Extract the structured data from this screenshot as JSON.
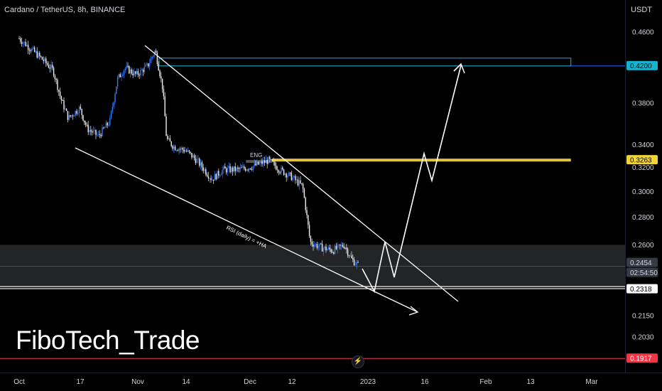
{
  "header": {
    "title": "Cardano / TetherUS, 8h, BINANCE",
    "currency": "USDT"
  },
  "watermark": "FiboTech_Trade",
  "colors": {
    "background": "#000000",
    "candle_up": "#3b78f5",
    "candle_down": "#f0f0f0",
    "resistance_zone": "#e2c53f",
    "target_zone": "#14b3d0",
    "support_zone": "#6e6f73",
    "red_line": "#f23645",
    "pattern_lines": "#ffffff"
  },
  "price_axis": {
    "ticks": [
      "0.4600",
      "0.3800",
      "0.3400",
      "0.3200",
      "0.3000",
      "0.2800",
      "0.2600",
      "0.2150",
      "0.2030"
    ],
    "flags": [
      {
        "label": "0.4200",
        "bg": "#14b3d0",
        "fg": "#000000"
      },
      {
        "label": "0.3263",
        "bg": "#f0d43a",
        "fg": "#000000"
      },
      {
        "label": "0.2454",
        "bg": "#363a45",
        "fg": "#d1d4dc"
      },
      {
        "label": "02:54:50",
        "bg": "#363a45",
        "fg": "#d1d4dc"
      },
      {
        "label": "0.2318",
        "bg": "#ffffff",
        "fg": "#000000"
      },
      {
        "label": "0.1917",
        "bg": "#f23645",
        "fg": "#ffffff"
      }
    ]
  },
  "time_axis": {
    "labels": [
      "Oct",
      "17",
      "Nov",
      "14",
      "Dec",
      "12",
      "2023",
      "16",
      "Feb",
      "13",
      "Mar"
    ]
  },
  "annotations": {
    "eng": "ENG",
    "rsi": "RSI (daily) = +HA"
  },
  "chart_data": {
    "type": "candlestick",
    "title": "Cardano / TetherUS, 8h, BINANCE",
    "xlabel": "",
    "ylabel": "",
    "y_scale": "log",
    "ylim": [
      0.1917,
      0.46
    ],
    "x_range": [
      "2022-09-30",
      "2023-03-04"
    ],
    "close_path": [
      [
        "2022-10-01",
        0.452
      ],
      [
        "2022-10-04",
        0.44
      ],
      [
        "2022-10-07",
        0.428
      ],
      [
        "2022-10-10",
        0.415
      ],
      [
        "2022-10-12",
        0.385
      ],
      [
        "2022-10-14",
        0.365
      ],
      [
        "2022-10-17",
        0.375
      ],
      [
        "2022-10-19",
        0.355
      ],
      [
        "2022-10-22",
        0.348
      ],
      [
        "2022-10-25",
        0.362
      ],
      [
        "2022-10-27",
        0.405
      ],
      [
        "2022-10-29",
        0.418
      ],
      [
        "2022-11-01",
        0.41
      ],
      [
        "2022-11-04",
        0.42
      ],
      [
        "2022-11-06",
        0.438
      ],
      [
        "2022-11-08",
        0.395
      ],
      [
        "2022-11-09",
        0.345
      ],
      [
        "2022-11-11",
        0.338
      ],
      [
        "2022-11-14",
        0.335
      ],
      [
        "2022-11-17",
        0.326
      ],
      [
        "2022-11-21",
        0.31
      ],
      [
        "2022-11-24",
        0.318
      ],
      [
        "2022-11-28",
        0.318
      ],
      [
        "2022-12-02",
        0.321
      ],
      [
        "2022-12-06",
        0.326
      ],
      [
        "2022-12-09",
        0.318
      ],
      [
        "2022-12-12",
        0.312
      ],
      [
        "2022-12-15",
        0.304
      ],
      [
        "2022-12-17",
        0.262
      ],
      [
        "2022-12-20",
        0.258
      ],
      [
        "2022-12-23",
        0.256
      ],
      [
        "2022-12-26",
        0.26
      ],
      [
        "2022-12-28",
        0.25
      ],
      [
        "2022-12-30",
        0.2454
      ]
    ],
    "current_price": 0.2454,
    "levels": {
      "target": 0.42,
      "resistance": 0.3263,
      "support_top": 0.26,
      "support_bottom": 0.2318,
      "stop": 0.1917
    }
  }
}
